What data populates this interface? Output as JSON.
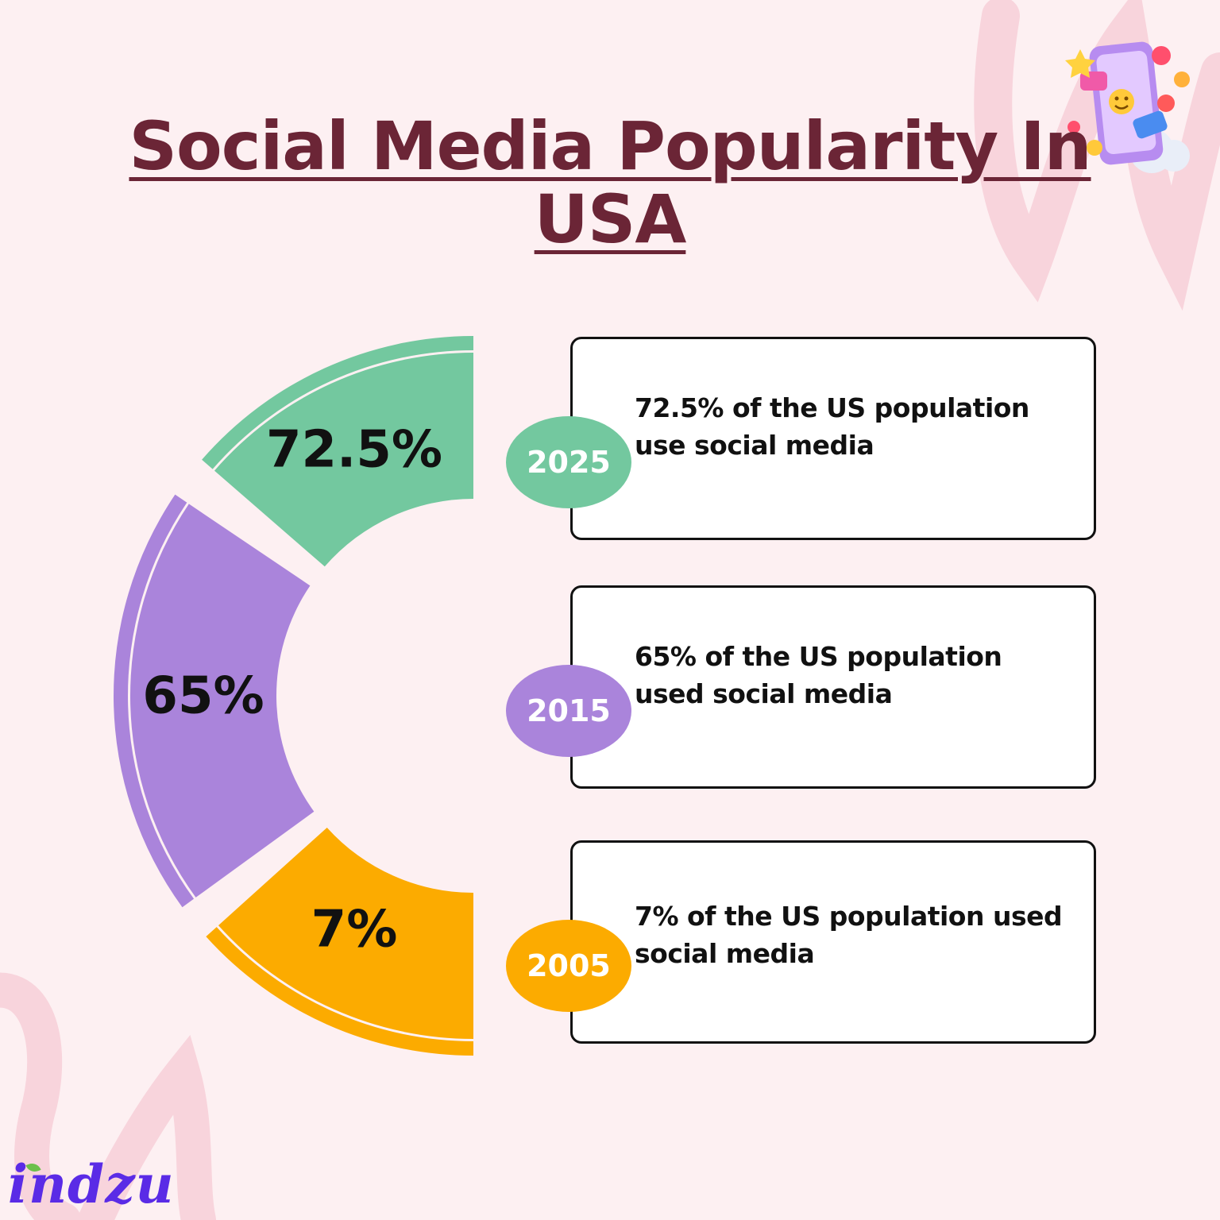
{
  "title": "Social Media Popularity In USA",
  "colors": {
    "background": "#fdf0f2",
    "title": "#6b2536",
    "green": "#73c89f",
    "purple": "#aa84db",
    "orange": "#fcab00",
    "decor_pink": "#f8d4dc"
  },
  "chart_data": {
    "type": "pie",
    "variant": "half-donut-segments",
    "title": "Social Media Popularity In USA",
    "categories": [
      "2025",
      "2015",
      "2005"
    ],
    "values": [
      72.5,
      65,
      7
    ],
    "labels": [
      "72.5%",
      "65%",
      "7%"
    ],
    "colors": [
      "#73c89f",
      "#aa84db",
      "#fcab00"
    ]
  },
  "cards": [
    {
      "year": "2025",
      "text": "72.5% of the US population use social media",
      "color": "#73c89f"
    },
    {
      "year": "2015",
      "text": "65% of the US population used social media",
      "color": "#aa84db"
    },
    {
      "year": "2005",
      "text": "7% of the US population used social media",
      "color": "#fcab00"
    }
  ],
  "brand": {
    "logo_text": "indzu"
  },
  "decor": {
    "icon": "social-media-phone-icon"
  }
}
